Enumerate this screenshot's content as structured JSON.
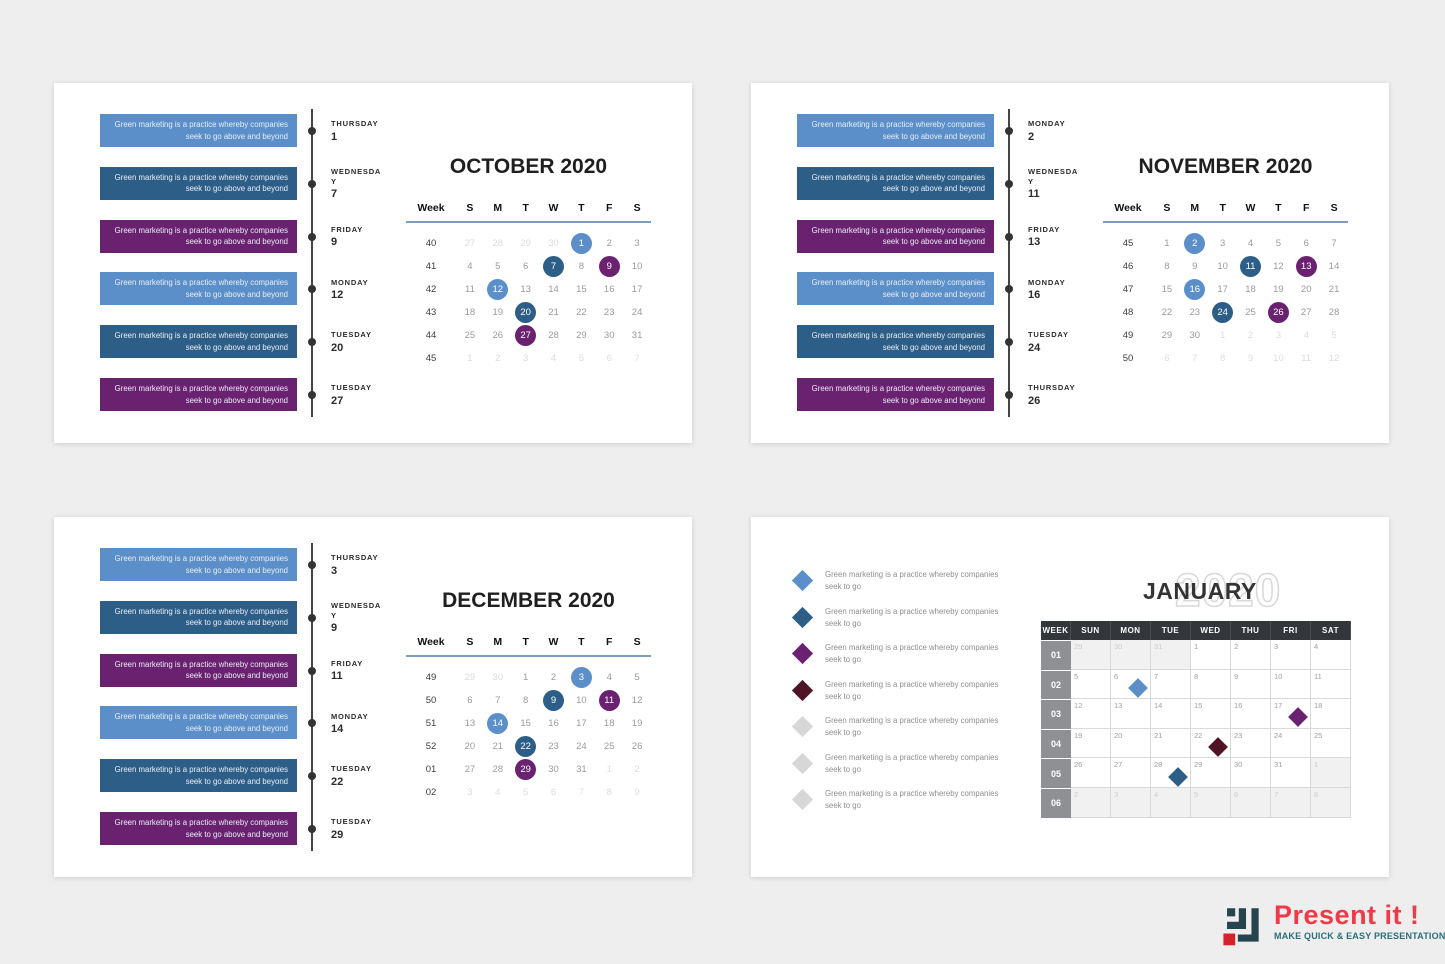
{
  "colors": {
    "light_blue": "#5b8fc9",
    "dark_blue": "#2d5e88",
    "purple": "#6a2170",
    "maroon": "#4f1326",
    "gray": "#d7d7d7"
  },
  "event_text": {
    "line1": "Green marketing is a practice whereby companies",
    "line2": "seek to go above and beyond"
  },
  "bullet_text": {
    "line1": "Green marketing is a practice whereby companies",
    "line2": "seek to go"
  },
  "slides": [
    {
      "type": "timeline",
      "name": "october-2020",
      "title": "OCTOBER 2020",
      "events": [
        {
          "day": "THURSDAY",
          "date": "1",
          "color": "light_blue"
        },
        {
          "day": "WEDNESDAY",
          "date": "7",
          "color": "dark_blue"
        },
        {
          "day": "FRIDAY",
          "date": "9",
          "color": "purple"
        },
        {
          "day": "MONDAY",
          "date": "12",
          "color": "light_blue"
        },
        {
          "day": "TUESDAY",
          "date": "20",
          "color": "dark_blue"
        },
        {
          "day": "TUESDAY",
          "date": "27",
          "color": "purple"
        }
      ],
      "calendar": {
        "week_label": "Week",
        "day_headers": [
          "S",
          "M",
          "T",
          "W",
          "T",
          "F",
          "S"
        ],
        "rows": [
          {
            "week": "40",
            "days": [
              {
                "n": "27",
                "f": 1
              },
              {
                "n": "28",
                "f": 1
              },
              {
                "n": "29",
                "f": 1
              },
              {
                "n": "30",
                "f": 1
              },
              {
                "n": "1",
                "hl": "light_blue"
              },
              {
                "n": "2"
              },
              {
                "n": "3"
              }
            ]
          },
          {
            "week": "41",
            "days": [
              {
                "n": "4"
              },
              {
                "n": "5"
              },
              {
                "n": "6"
              },
              {
                "n": "7",
                "hl": "dark_blue"
              },
              {
                "n": "8"
              },
              {
                "n": "9",
                "hl": "purple"
              },
              {
                "n": "10"
              }
            ]
          },
          {
            "week": "42",
            "days": [
              {
                "n": "11"
              },
              {
                "n": "12",
                "hl": "light_blue"
              },
              {
                "n": "13"
              },
              {
                "n": "14"
              },
              {
                "n": "15"
              },
              {
                "n": "16"
              },
              {
                "n": "17"
              }
            ]
          },
          {
            "week": "43",
            "days": [
              {
                "n": "18"
              },
              {
                "n": "19"
              },
              {
                "n": "20",
                "hl": "dark_blue"
              },
              {
                "n": "21"
              },
              {
                "n": "22"
              },
              {
                "n": "23"
              },
              {
                "n": "24"
              }
            ]
          },
          {
            "week": "44",
            "days": [
              {
                "n": "25"
              },
              {
                "n": "26"
              },
              {
                "n": "27",
                "hl": "purple"
              },
              {
                "n": "28"
              },
              {
                "n": "29"
              },
              {
                "n": "30"
              },
              {
                "n": "31"
              }
            ]
          },
          {
            "week": "45",
            "days": [
              {
                "n": "1",
                "f": 1
              },
              {
                "n": "2",
                "f": 1
              },
              {
                "n": "3",
                "f": 1
              },
              {
                "n": "4",
                "f": 1
              },
              {
                "n": "5",
                "f": 1
              },
              {
                "n": "6",
                "f": 1
              },
              {
                "n": "7",
                "f": 1
              }
            ]
          }
        ]
      }
    },
    {
      "type": "timeline",
      "name": "november-2020",
      "title": "NOVEMBER 2020",
      "events": [
        {
          "day": "MONDAY",
          "date": "2",
          "color": "light_blue"
        },
        {
          "day": "WEDNESDAY",
          "date": "11",
          "color": "dark_blue"
        },
        {
          "day": "FRIDAY",
          "date": "13",
          "color": "purple"
        },
        {
          "day": "MONDAY",
          "date": "16",
          "color": "light_blue"
        },
        {
          "day": "TUESDAY",
          "date": "24",
          "color": "dark_blue"
        },
        {
          "day": "THURSDAY",
          "date": "26",
          "color": "purple"
        }
      ],
      "calendar": {
        "week_label": "Week",
        "day_headers": [
          "S",
          "M",
          "T",
          "W",
          "T",
          "F",
          "S"
        ],
        "rows": [
          {
            "week": "45",
            "days": [
              {
                "n": "1"
              },
              {
                "n": "2",
                "hl": "light_blue"
              },
              {
                "n": "3"
              },
              {
                "n": "4"
              },
              {
                "n": "5"
              },
              {
                "n": "6"
              },
              {
                "n": "7"
              }
            ]
          },
          {
            "week": "46",
            "days": [
              {
                "n": "8"
              },
              {
                "n": "9"
              },
              {
                "n": "10"
              },
              {
                "n": "11",
                "hl": "dark_blue"
              },
              {
                "n": "12"
              },
              {
                "n": "13",
                "hl": "purple"
              },
              {
                "n": "14"
              }
            ]
          },
          {
            "week": "47",
            "days": [
              {
                "n": "15"
              },
              {
                "n": "16",
                "hl": "light_blue"
              },
              {
                "n": "17"
              },
              {
                "n": "18"
              },
              {
                "n": "19"
              },
              {
                "n": "20"
              },
              {
                "n": "21"
              }
            ]
          },
          {
            "week": "48",
            "days": [
              {
                "n": "22"
              },
              {
                "n": "23"
              },
              {
                "n": "24",
                "hl": "dark_blue"
              },
              {
                "n": "25"
              },
              {
                "n": "26",
                "hl": "purple"
              },
              {
                "n": "27"
              },
              {
                "n": "28"
              }
            ]
          },
          {
            "week": "49",
            "days": [
              {
                "n": "29"
              },
              {
                "n": "30"
              },
              {
                "n": "1",
                "f": 1
              },
              {
                "n": "2",
                "f": 1
              },
              {
                "n": "3",
                "f": 1
              },
              {
                "n": "4",
                "f": 1
              },
              {
                "n": "5",
                "f": 1
              }
            ]
          },
          {
            "week": "50",
            "days": [
              {
                "n": "6",
                "f": 1
              },
              {
                "n": "7",
                "f": 1
              },
              {
                "n": "8",
                "f": 1
              },
              {
                "n": "9",
                "f": 1
              },
              {
                "n": "10",
                "f": 1
              },
              {
                "n": "11",
                "f": 1
              },
              {
                "n": "12",
                "f": 1
              }
            ]
          }
        ]
      }
    },
    {
      "type": "timeline",
      "name": "december-2020",
      "title": "DECEMBER 2020",
      "events": [
        {
          "day": "THURSDAY",
          "date": "3",
          "color": "light_blue"
        },
        {
          "day": "WEDNESDAY",
          "date": "9",
          "color": "dark_blue"
        },
        {
          "day": "FRIDAY",
          "date": "11",
          "color": "purple"
        },
        {
          "day": "MONDAY",
          "date": "14",
          "color": "light_blue"
        },
        {
          "day": "TUESDAY",
          "date": "22",
          "color": "dark_blue"
        },
        {
          "day": "TUESDAY",
          "date": "29",
          "color": "purple"
        }
      ],
      "calendar": {
        "week_label": "Week",
        "day_headers": [
          "S",
          "M",
          "T",
          "W",
          "T",
          "F",
          "S"
        ],
        "rows": [
          {
            "week": "49",
            "days": [
              {
                "n": "29",
                "f": 1
              },
              {
                "n": "30",
                "f": 1
              },
              {
                "n": "1"
              },
              {
                "n": "2"
              },
              {
                "n": "3",
                "hl": "light_blue"
              },
              {
                "n": "4"
              },
              {
                "n": "5"
              }
            ]
          },
          {
            "week": "50",
            "days": [
              {
                "n": "6"
              },
              {
                "n": "7"
              },
              {
                "n": "8"
              },
              {
                "n": "9",
                "hl": "dark_blue"
              },
              {
                "n": "10"
              },
              {
                "n": "11",
                "hl": "purple"
              },
              {
                "n": "12"
              }
            ]
          },
          {
            "week": "51",
            "days": [
              {
                "n": "13"
              },
              {
                "n": "14",
                "hl": "light_blue"
              },
              {
                "n": "15"
              },
              {
                "n": "16"
              },
              {
                "n": "17"
              },
              {
                "n": "18"
              },
              {
                "n": "19"
              }
            ]
          },
          {
            "week": "52",
            "days": [
              {
                "n": "20"
              },
              {
                "n": "21"
              },
              {
                "n": "22",
                "hl": "dark_blue"
              },
              {
                "n": "23"
              },
              {
                "n": "24"
              },
              {
                "n": "25"
              },
              {
                "n": "26"
              }
            ]
          },
          {
            "week": "01",
            "days": [
              {
                "n": "27"
              },
              {
                "n": "28"
              },
              {
                "n": "29",
                "hl": "purple"
              },
              {
                "n": "30"
              },
              {
                "n": "31"
              },
              {
                "n": "1",
                "f": 1
              },
              {
                "n": "2",
                "f": 1
              }
            ]
          },
          {
            "week": "02",
            "days": [
              {
                "n": "3",
                "f": 1
              },
              {
                "n": "4",
                "f": 1
              },
              {
                "n": "5",
                "f": 1
              },
              {
                "n": "6",
                "f": 1
              },
              {
                "n": "7",
                "f": 1
              },
              {
                "n": "8",
                "f": 1
              },
              {
                "n": "9",
                "f": 1
              }
            ]
          }
        ]
      }
    },
    {
      "type": "grid",
      "name": "january-2020",
      "title": "JANUARY",
      "year": "2020",
      "bullets": [
        {
          "color": "light_blue"
        },
        {
          "color": "dark_blue"
        },
        {
          "color": "purple"
        },
        {
          "color": "maroon"
        },
        {
          "color": "gray"
        },
        {
          "color": "gray"
        },
        {
          "color": "gray"
        }
      ],
      "table": {
        "headers": [
          "WEEK",
          "SUN",
          "MON",
          "TUE",
          "WED",
          "THU",
          "FRI",
          "SAT"
        ],
        "rows": [
          {
            "week": "01",
            "cells": [
              {
                "n": "29",
                "f": 1
              },
              {
                "n": "30",
                "f": 1
              },
              {
                "n": "31",
                "f": 1
              },
              {
                "n": "1"
              },
              {
                "n": "2"
              },
              {
                "n": "3"
              },
              {
                "n": "4"
              }
            ]
          },
          {
            "week": "02",
            "cells": [
              {
                "n": "5"
              },
              {
                "n": "6",
                "d": "light_blue"
              },
              {
                "n": "7"
              },
              {
                "n": "8"
              },
              {
                "n": "9"
              },
              {
                "n": "10"
              },
              {
                "n": "11"
              }
            ]
          },
          {
            "week": "03",
            "cells": [
              {
                "n": "12"
              },
              {
                "n": "13"
              },
              {
                "n": "14"
              },
              {
                "n": "15"
              },
              {
                "n": "16"
              },
              {
                "n": "17",
                "d": "purple"
              },
              {
                "n": "18"
              }
            ]
          },
          {
            "week": "04",
            "cells": [
              {
                "n": "19"
              },
              {
                "n": "20"
              },
              {
                "n": "21"
              },
              {
                "n": "22",
                "d": "maroon"
              },
              {
                "n": "23"
              },
              {
                "n": "24"
              },
              {
                "n": "25"
              }
            ]
          },
          {
            "week": "05",
            "cells": [
              {
                "n": "26"
              },
              {
                "n": "27"
              },
              {
                "n": "28",
                "d": "dark_blue"
              },
              {
                "n": "29"
              },
              {
                "n": "30"
              },
              {
                "n": "31"
              },
              {
                "n": "1",
                "f": 1
              }
            ]
          },
          {
            "week": "06",
            "cells": [
              {
                "n": "2",
                "f": 1
              },
              {
                "n": "3",
                "f": 1
              },
              {
                "n": "4",
                "f": 1
              },
              {
                "n": "5",
                "f": 1
              },
              {
                "n": "6",
                "f": 1
              },
              {
                "n": "7",
                "f": 1
              },
              {
                "n": "8",
                "f": 1
              }
            ]
          }
        ]
      }
    }
  ],
  "logo": {
    "brand": "Present it !",
    "tagline": "MAKE QUICK & EASY PRESENTATIONS"
  }
}
